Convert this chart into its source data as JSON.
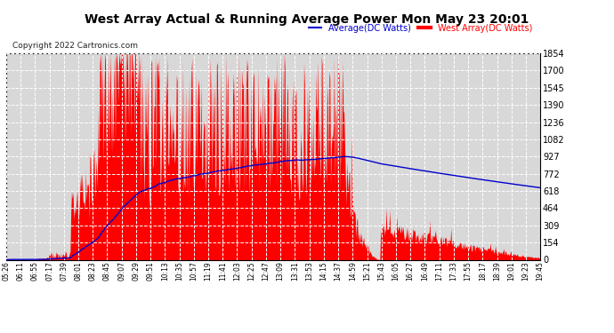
{
  "title": "West Array Actual & Running Average Power Mon May 23 20:01",
  "copyright": "Copyright 2022 Cartronics.com",
  "legend_avg": "Average(DC Watts)",
  "legend_west": "West Array(DC Watts)",
  "ymin": 0,
  "ymax": 1854.0,
  "yticks": [
    0,
    154.5,
    309.0,
    463.5,
    618.0,
    772.5,
    927.0,
    1081.5,
    1236.0,
    1390.5,
    1545.0,
    1699.5,
    1854.0
  ],
  "bg_color": "#ffffff",
  "plot_bg_color": "#d8d8d8",
  "grid_color": "#ffffff",
  "red_color": "#ff0000",
  "blue_color": "#0000cc",
  "title_color": "#000000",
  "xtick_labels": [
    "05:26",
    "06:11",
    "06:55",
    "07:17",
    "07:39",
    "08:01",
    "08:23",
    "08:45",
    "09:07",
    "09:29",
    "09:51",
    "10:13",
    "10:35",
    "10:57",
    "11:19",
    "11:41",
    "12:03",
    "12:25",
    "12:47",
    "13:09",
    "13:31",
    "13:53",
    "14:15",
    "14:37",
    "14:59",
    "15:21",
    "15:43",
    "16:05",
    "16:27",
    "16:49",
    "17:11",
    "17:33",
    "17:55",
    "18:17",
    "18:39",
    "19:01",
    "19:23",
    "19:45"
  ],
  "n_points": 760
}
